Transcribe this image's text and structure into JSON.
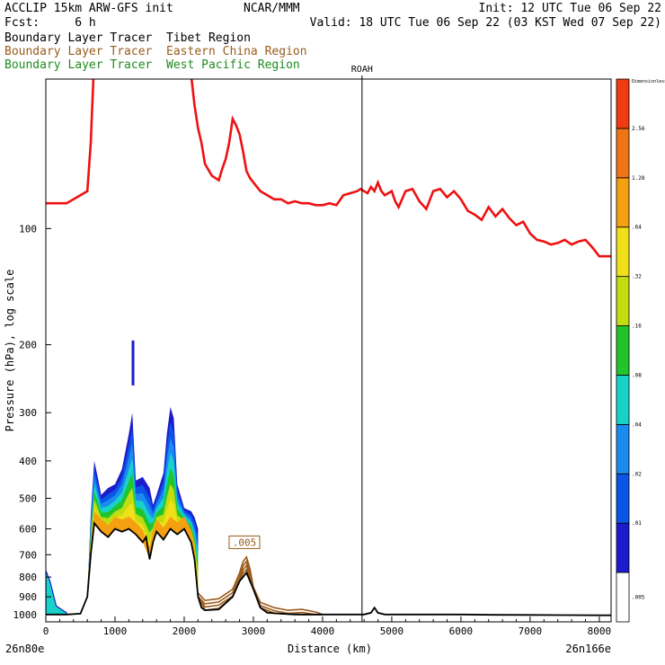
{
  "header": {
    "line1_left": "ACCLIP 15km ARW-GFS init",
    "line1_mid": "NCAR/MMM",
    "line1_right": "Init: 12 UTC Tue 06 Sep 22",
    "line2_left": "Fcst:     6 h",
    "line2_right": "Valid: 18 UTC Tue 06 Sep 22 (03 KST Wed 07 Sep 22)",
    "tracers": [
      {
        "text": "Boundary Layer Tracer  Tibet Region",
        "color": "#000000"
      },
      {
        "text": "Boundary Layer Tracer  Eastern China Region",
        "color": "#9a5b1c"
      },
      {
        "text": "Boundary Layer Tracer  West Pacific Region",
        "color": "#1e8c1e"
      }
    ]
  },
  "chart_data": {
    "type": "cross-section",
    "xlabel": "Distance (km)",
    "ylabel": "Pressure (hPa), log scale",
    "x_ticks": [
      0,
      1000,
      2000,
      3000,
      4000,
      5000,
      6000,
      7000,
      8000
    ],
    "y_ticks": [
      100,
      200,
      300,
      400,
      500,
      600,
      700,
      800,
      900,
      1000
    ],
    "xlim": [
      0,
      8170
    ],
    "ylim": [
      1045,
      41
    ],
    "left_endpoint": "26n80e",
    "right_endpoint": "26n166e",
    "marker": {
      "label": "ROAH",
      "x": 4570
    },
    "contour_label": ".005",
    "tropopause": {
      "color": "#ee1111",
      "x": [
        0,
        300,
        600,
        650,
        700,
        950,
        1000,
        1100,
        1200,
        1300,
        1400,
        1450,
        1500,
        1550,
        1600,
        1650,
        1700,
        1800,
        1900,
        2000,
        2100,
        2150,
        2200,
        2250,
        2300,
        2400,
        2500,
        2550,
        2600,
        2650,
        2700,
        2750,
        2800,
        2850,
        2900,
        2950,
        3000,
        3100,
        3200,
        3300,
        3400,
        3500,
        3600,
        3700,
        3800,
        3900,
        4000,
        4100,
        4200,
        4300,
        4400,
        4500,
        4550,
        4600,
        4650,
        4700,
        4750,
        4800,
        4850,
        4900,
        5000,
        5050,
        5100,
        5200,
        5300,
        5400,
        5500,
        5600,
        5700,
        5800,
        5900,
        6000,
        6100,
        6200,
        6300,
        6400,
        6500,
        6600,
        6700,
        6800,
        6900,
        7000,
        7100,
        7200,
        7300,
        7400,
        7500,
        7600,
        7700,
        7800,
        7900,
        8000,
        8170
      ],
      "p": [
        86,
        86,
        80,
        60,
        36,
        36,
        36,
        36,
        36,
        36,
        36,
        36,
        36,
        36,
        36,
        36,
        36,
        36,
        36,
        36,
        40,
        48,
        55,
        60,
        68,
        73,
        75,
        70,
        66,
        60,
        52,
        54,
        57,
        63,
        71,
        74,
        76,
        80,
        82,
        84,
        84,
        86,
        85,
        86,
        86,
        87,
        87,
        86,
        87,
        82,
        81,
        80,
        79,
        80,
        81,
        78,
        80,
        76,
        80,
        82,
        80,
        85,
        88,
        80,
        79,
        85,
        89,
        80,
        79,
        83,
        80,
        84,
        90,
        92,
        95,
        88,
        93,
        89,
        94,
        98,
        96,
        103,
        107,
        108,
        110,
        109,
        107,
        110,
        108,
        107,
        112,
        118,
        118
      ]
    },
    "terrain": {
      "color": "#000000",
      "x": [
        0,
        300,
        500,
        600,
        650,
        700,
        800,
        900,
        1000,
        1100,
        1200,
        1300,
        1400,
        1450,
        1500,
        1550,
        1600,
        1700,
        1800,
        1900,
        2000,
        2100,
        2150,
        2200,
        2250,
        2300,
        2500,
        2700,
        2800,
        2900,
        3000,
        3100,
        3200,
        3400,
        3600,
        3800,
        4000,
        4200,
        4400,
        4600,
        4700,
        4750,
        4800,
        4900,
        5200,
        5600,
        6000,
        6500,
        7000,
        7500,
        8000,
        8170
      ],
      "p": [
        1000,
        1000,
        995,
        900,
        700,
        580,
        610,
        630,
        600,
        610,
        600,
        620,
        650,
        630,
        720,
        650,
        610,
        640,
        600,
        620,
        600,
        650,
        720,
        900,
        960,
        975,
        970,
        900,
        820,
        780,
        860,
        960,
        990,
        995,
        1000,
        1000,
        1000,
        1000,
        1000,
        1000,
        990,
        960,
        990,
        1000,
        1000,
        1000,
        1000,
        1002,
        1003,
        1004,
        1005,
        1005
      ]
    },
    "tibet_tracer": {
      "color_bar": [
        "#ffffff",
        "#1c1ccc",
        "#0b55e6",
        "#1a8cf0",
        "#18d2c8",
        "#22c42c",
        "#c2dc12",
        "#f0e01a",
        "#f4a010",
        "#f07416",
        "#f03c10"
      ],
      "color_bar_labels": [
        ".005",
        ".01",
        ".02",
        ".04",
        ".08",
        ".16",
        ".32",
        ".64",
        "1.28",
        "2.56",
        "Dimensionless"
      ],
      "envelope_x": [
        600,
        650,
        700,
        750,
        800,
        900,
        1000,
        1100,
        1200,
        1250,
        1300,
        1400,
        1500,
        1550,
        1600,
        1700,
        1750,
        1800,
        1850,
        1900,
        2000,
        2100,
        2150,
        2200
      ],
      "envelope_p": [
        900,
        550,
        400,
        440,
        490,
        470,
        460,
        420,
        340,
        300,
        450,
        440,
        470,
        520,
        490,
        430,
        340,
        290,
        310,
        460,
        530,
        540,
        560,
        600
      ]
    },
    "eastern_china_tracer": {
      "color": "#9a5b1c",
      "x": [
        2200,
        2300,
        2500,
        2700,
        2800,
        2850,
        2900,
        2950,
        3000,
        3100,
        3300,
        3500,
        3700,
        3900,
        4000
      ],
      "p": [
        880,
        920,
        910,
        860,
        780,
        730,
        710,
        760,
        850,
        930,
        960,
        975,
        970,
        985,
        1000
      ]
    }
  }
}
